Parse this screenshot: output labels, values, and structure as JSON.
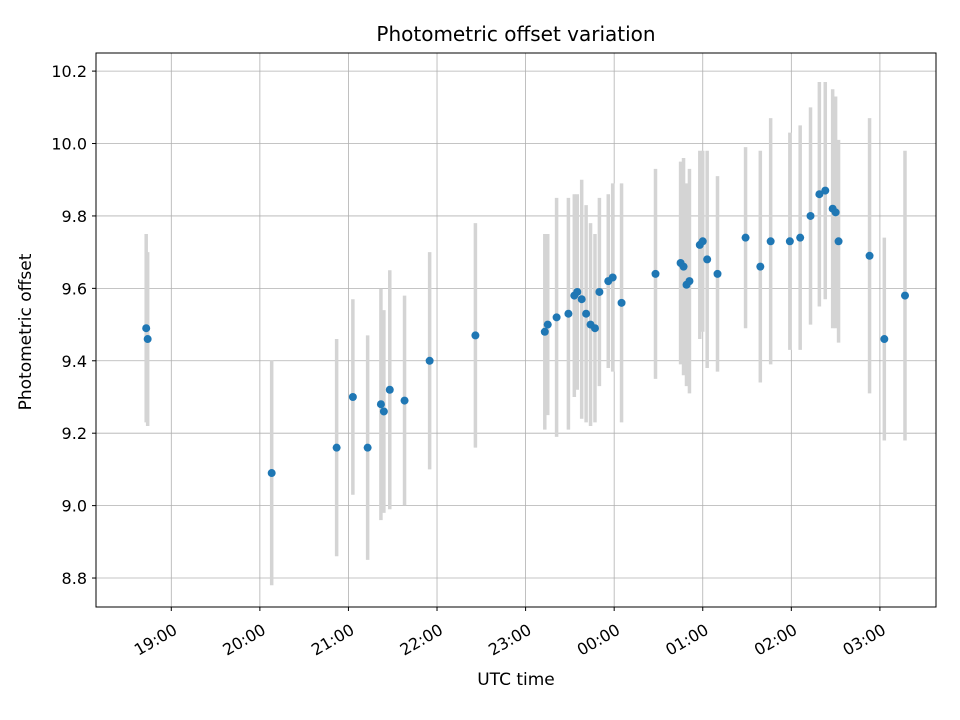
{
  "figure": {
    "background": "#ffffff"
  },
  "chart_data": {
    "type": "scatter",
    "title": "Photometric offset variation",
    "xlabel": "UTC time",
    "ylabel": "Photometric offset",
    "x_tick_labels": [
      "19:00",
      "20:00",
      "21:00",
      "22:00",
      "23:00",
      "00:00",
      "01:00",
      "02:00",
      "03:00"
    ],
    "x_tick_minutes": [
      60,
      120,
      180,
      240,
      300,
      360,
      420,
      480,
      540
    ],
    "xlim_minutes": [
      9,
      578
    ],
    "y_ticks": [
      8.8,
      9.0,
      9.2,
      9.4,
      9.6,
      9.8,
      10.0,
      10.2
    ],
    "ylim": [
      8.72,
      10.25
    ],
    "grid": true,
    "legend": "none",
    "colors": {
      "marker": "#1f77b4",
      "error_bar": "#d4d4d4",
      "grid": "#b0b0b0",
      "spine": "#000000"
    },
    "points": [
      {
        "time": "18:43",
        "minutes": 43,
        "offset": 9.49,
        "err": 0.26
      },
      {
        "time": "18:44",
        "minutes": 44,
        "offset": 9.46,
        "err": 0.24
      },
      {
        "time": "20:08",
        "minutes": 128,
        "offset": 9.09,
        "err": 0.31
      },
      {
        "time": "20:52",
        "minutes": 172,
        "offset": 9.16,
        "err": 0.3
      },
      {
        "time": "21:03",
        "minutes": 183,
        "offset": 9.3,
        "err": 0.27
      },
      {
        "time": "21:13",
        "minutes": 193,
        "offset": 9.16,
        "err": 0.31
      },
      {
        "time": "21:22",
        "minutes": 202,
        "offset": 9.28,
        "err": 0.32
      },
      {
        "time": "21:24",
        "minutes": 204,
        "offset": 9.26,
        "err": 0.28
      },
      {
        "time": "21:28",
        "minutes": 208,
        "offset": 9.32,
        "err": 0.33
      },
      {
        "time": "21:38",
        "minutes": 218,
        "offset": 9.29,
        "err": 0.29
      },
      {
        "time": "21:55",
        "minutes": 235,
        "offset": 9.4,
        "err": 0.3
      },
      {
        "time": "22:26",
        "minutes": 266,
        "offset": 9.47,
        "err": 0.31
      },
      {
        "time": "23:13",
        "minutes": 313,
        "offset": 9.48,
        "err": 0.27
      },
      {
        "time": "23:15",
        "minutes": 315,
        "offset": 9.5,
        "err": 0.25
      },
      {
        "time": "23:21",
        "minutes": 321,
        "offset": 9.52,
        "err": 0.33
      },
      {
        "time": "23:29",
        "minutes": 329,
        "offset": 9.53,
        "err": 0.32
      },
      {
        "time": "23:33",
        "minutes": 333,
        "offset": 9.58,
        "err": 0.28
      },
      {
        "time": "23:35",
        "minutes": 335,
        "offset": 9.59,
        "err": 0.27
      },
      {
        "time": "23:38",
        "minutes": 338,
        "offset": 9.57,
        "err": 0.33
      },
      {
        "time": "23:41",
        "minutes": 341,
        "offset": 9.53,
        "err": 0.3
      },
      {
        "time": "23:44",
        "minutes": 344,
        "offset": 9.5,
        "err": 0.28
      },
      {
        "time": "23:47",
        "minutes": 347,
        "offset": 9.49,
        "err": 0.26
      },
      {
        "time": "23:50",
        "minutes": 350,
        "offset": 9.59,
        "err": 0.26
      },
      {
        "time": "23:56",
        "minutes": 356,
        "offset": 9.62,
        "err": 0.24
      },
      {
        "time": "23:59",
        "minutes": 359,
        "offset": 9.63,
        "err": 0.26
      },
      {
        "time": "00:05",
        "minutes": 365,
        "offset": 9.56,
        "err": 0.33
      },
      {
        "time": "00:28",
        "minutes": 388,
        "offset": 9.64,
        "err": 0.29
      },
      {
        "time": "00:45",
        "minutes": 405,
        "offset": 9.67,
        "err": 0.28
      },
      {
        "time": "00:47",
        "minutes": 407,
        "offset": 9.66,
        "err": 0.3
      },
      {
        "time": "00:49",
        "minutes": 409,
        "offset": 9.61,
        "err": 0.28
      },
      {
        "time": "00:51",
        "minutes": 411,
        "offset": 9.62,
        "err": 0.31
      },
      {
        "time": "00:58",
        "minutes": 418,
        "offset": 9.72,
        "err": 0.26
      },
      {
        "time": "01:00",
        "minutes": 420,
        "offset": 9.73,
        "err": 0.25
      },
      {
        "time": "01:03",
        "minutes": 423,
        "offset": 9.68,
        "err": 0.3
      },
      {
        "time": "01:10",
        "minutes": 430,
        "offset": 9.64,
        "err": 0.27
      },
      {
        "time": "01:29",
        "minutes": 449,
        "offset": 9.74,
        "err": 0.25
      },
      {
        "time": "01:39",
        "minutes": 459,
        "offset": 9.66,
        "err": 0.32
      },
      {
        "time": "01:46",
        "minutes": 466,
        "offset": 9.73,
        "err": 0.34
      },
      {
        "time": "01:59",
        "minutes": 479,
        "offset": 9.73,
        "err": 0.3
      },
      {
        "time": "02:06",
        "minutes": 486,
        "offset": 9.74,
        "err": 0.31
      },
      {
        "time": "02:13",
        "minutes": 493,
        "offset": 9.8,
        "err": 0.3
      },
      {
        "time": "02:19",
        "minutes": 499,
        "offset": 9.86,
        "err": 0.31
      },
      {
        "time": "02:23",
        "minutes": 503,
        "offset": 9.87,
        "err": 0.3
      },
      {
        "time": "02:28",
        "minutes": 508,
        "offset": 9.82,
        "err": 0.33
      },
      {
        "time": "02:30",
        "minutes": 510,
        "offset": 9.81,
        "err": 0.32
      },
      {
        "time": "02:32",
        "minutes": 512,
        "offset": 9.73,
        "err": 0.28
      },
      {
        "time": "02:53",
        "minutes": 533,
        "offset": 9.69,
        "err": 0.38
      },
      {
        "time": "03:03",
        "minutes": 543,
        "offset": 9.46,
        "err": 0.28
      },
      {
        "time": "03:17",
        "minutes": 557,
        "offset": 9.58,
        "err": 0.4
      }
    ]
  }
}
